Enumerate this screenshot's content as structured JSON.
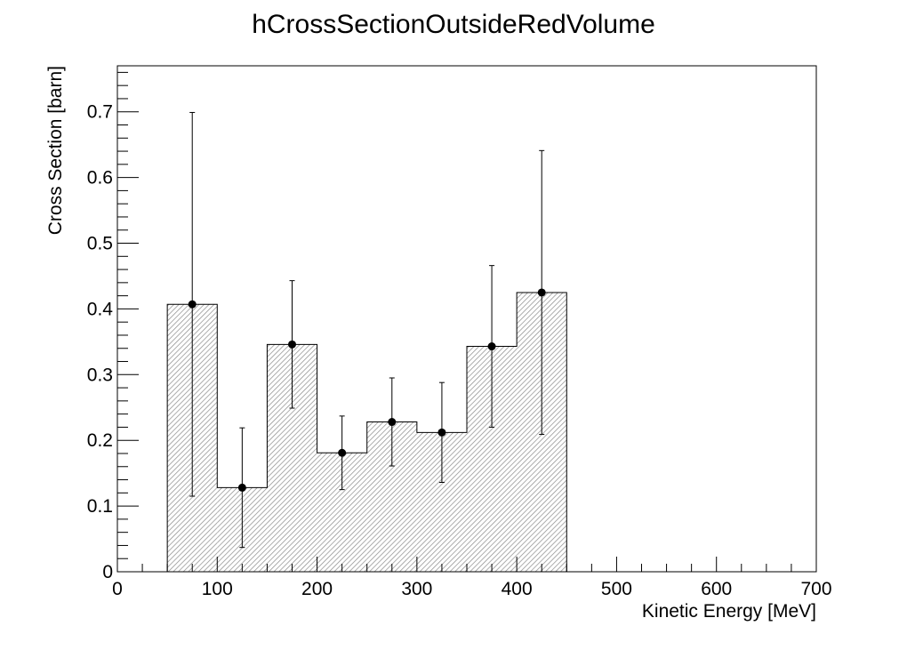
{
  "chart_data": {
    "type": "histogram",
    "title": "hCrossSectionOutsideRedVolume",
    "xlabel": "Kinetic Energy [MeV]",
    "ylabel": "Cross Section [barn]",
    "xlim": [
      0,
      700
    ],
    "ylim": [
      0,
      0.77
    ],
    "x_ticks": [
      "0",
      "100",
      "200",
      "300",
      "400",
      "500",
      "600",
      "700"
    ],
    "y_ticks": [
      "0",
      "0.1",
      "0.2",
      "0.3",
      "0.4",
      "0.5",
      "0.6",
      "0.7"
    ],
    "bin_edges": [
      50,
      100,
      150,
      200,
      250,
      300,
      350,
      400,
      450
    ],
    "x": [
      75,
      125,
      175,
      225,
      275,
      325,
      375,
      425
    ],
    "values": [
      0.407,
      0.128,
      0.346,
      0.181,
      0.228,
      0.212,
      0.343,
      0.425
    ],
    "err_low": [
      0.292,
      0.091,
      0.097,
      0.056,
      0.067,
      0.076,
      0.123,
      0.216
    ],
    "err_high": [
      0.292,
      0.091,
      0.097,
      0.056,
      0.067,
      0.076,
      0.123,
      0.216
    ],
    "fill": "hatched grey",
    "grid": false,
    "legend": "none"
  }
}
